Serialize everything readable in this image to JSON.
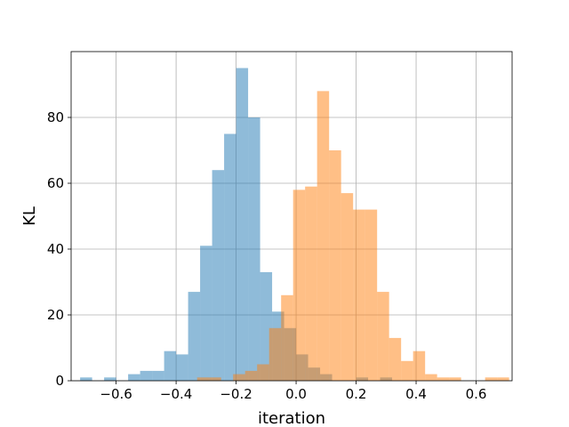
{
  "chart_data": {
    "type": "histogram",
    "title": "",
    "xlabel": "iteration",
    "ylabel": "KL",
    "xlim": [
      -0.75,
      0.72
    ],
    "ylim": [
      0,
      100
    ],
    "grid": true,
    "x_ticks": [
      -0.6,
      -0.4,
      -0.2,
      0.0,
      0.2,
      0.4,
      0.6
    ],
    "x_tick_labels": [
      "−0.6",
      "−0.4",
      "−0.2",
      "0.0",
      "0.2",
      "0.4",
      "0.6"
    ],
    "y_ticks": [
      0,
      20,
      40,
      60,
      80
    ],
    "y_tick_labels": [
      "0",
      "20",
      "40",
      "60",
      "80"
    ],
    "series": [
      {
        "color": "#1f77b4",
        "alpha": 0.5,
        "bin_start": -0.72,
        "bin_width": 0.04,
        "counts": [
          1,
          0,
          1,
          0,
          2,
          3,
          3,
          9,
          8,
          27,
          41,
          64,
          75,
          95,
          80,
          33,
          21,
          16,
          8,
          4,
          2,
          0,
          0,
          1,
          0,
          1
        ]
      },
      {
        "color": "#ff7f0e",
        "alpha": 0.5,
        "bin_start": -0.33,
        "bin_width": 0.04,
        "counts": [
          1,
          1,
          0,
          2,
          3,
          5,
          16,
          26,
          58,
          59,
          88,
          70,
          57,
          52,
          52,
          27,
          13,
          6,
          9,
          2,
          1,
          1,
          0,
          0,
          1,
          1
        ]
      }
    ]
  }
}
